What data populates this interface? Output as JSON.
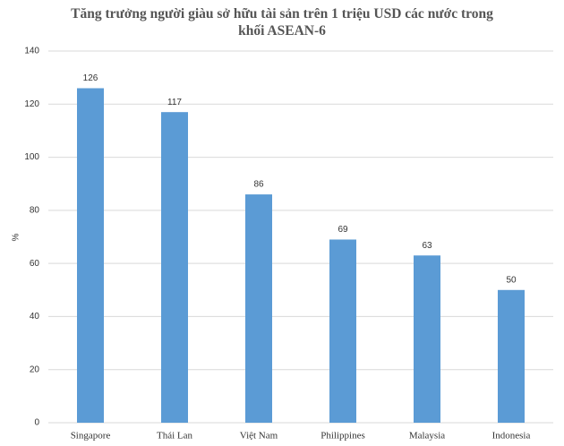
{
  "chart_data": {
    "type": "bar",
    "title": "Tăng trưởng người giàu sở hữu tài sản trên 1 triệu USD các nước trong khối ASEAN-6",
    "y_label": "%",
    "categories": [
      "Singapore",
      "Thái Lan",
      "Việt Nam",
      "Philippines",
      "Malaysia",
      "Indonesia"
    ],
    "values": [
      126,
      117,
      86,
      69,
      63,
      50
    ],
    "color": "#5b9bd5",
    "ylim": [
      0,
      140
    ],
    "yticks": [
      0,
      20,
      40,
      60,
      80,
      100,
      120,
      140
    ],
    "grid": true
  }
}
